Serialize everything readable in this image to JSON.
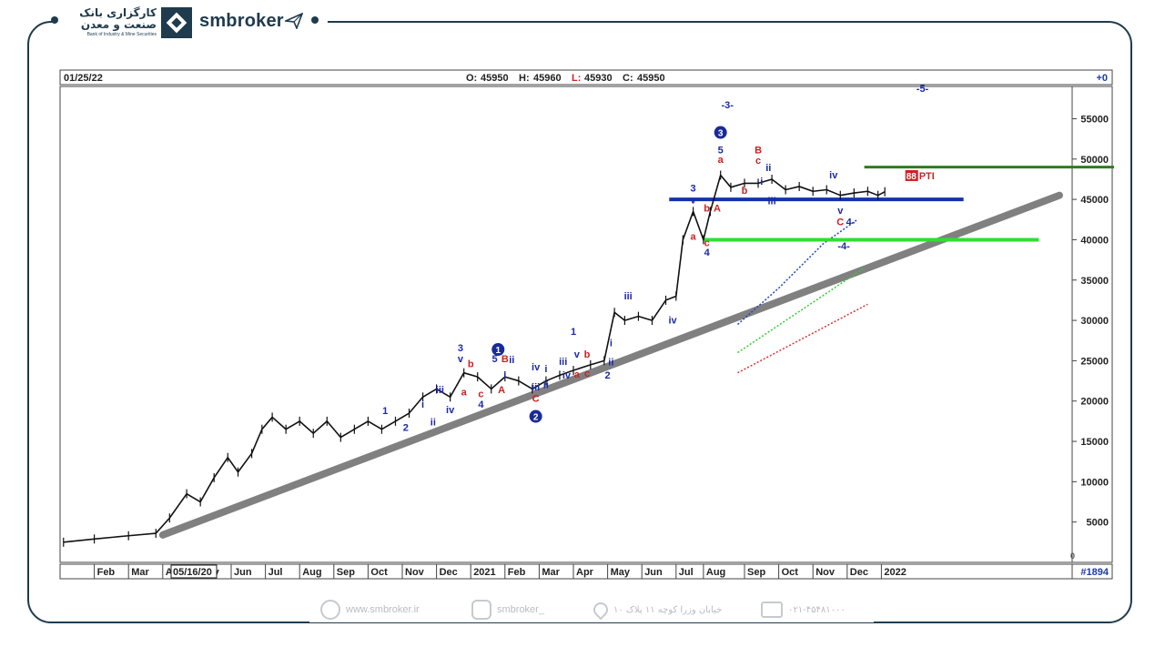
{
  "brand": {
    "company_fa_line1": "کارگزاری بانک",
    "company_fa_line2": "صنعت و معدن",
    "company_en": "Bank of Industry & Mine Securities",
    "site_name": "smbroker"
  },
  "footer": {
    "website": "www.smbroker.ir",
    "instagram": "smbroker_",
    "address": "خیابان وزرا کوچه ۱۱ پلاک ۱۰",
    "phone": "۰۲۱-۴۵۴۸۱۰۰۰"
  },
  "header": {
    "date": "01/25/22",
    "o_label": "O:",
    "o": "45950",
    "h_label": "H:",
    "h": "45960",
    "l_label": "L:",
    "l": "45930",
    "c_label": "C:",
    "c": "45950",
    "right_change": "+0"
  },
  "bottom": {
    "bar_count": "#1894",
    "cursor_date": "05/16/20"
  },
  "chart_data": {
    "type": "line",
    "ylim": [
      0,
      60000
    ],
    "yticks": [
      5000,
      10000,
      15000,
      20000,
      25000,
      30000,
      35000,
      40000,
      45000,
      50000,
      55000
    ],
    "xticks": [
      {
        "label": "Feb",
        "m": 1.0
      },
      {
        "label": "Mar",
        "m": 2.0
      },
      {
        "label": "Apr",
        "m": 3.0
      },
      {
        "label": "May",
        "m": 4.0
      },
      {
        "label": "Jun",
        "m": 5.0
      },
      {
        "label": "Jul",
        "m": 6.0
      },
      {
        "label": "Aug",
        "m": 7.0
      },
      {
        "label": "Sep",
        "m": 8.0
      },
      {
        "label": "Oct",
        "m": 9.0
      },
      {
        "label": "Nov",
        "m": 10.0
      },
      {
        "label": "Dec",
        "m": 11.0
      },
      {
        "label": "2021",
        "m": 12.0
      },
      {
        "label": "Feb",
        "m": 13.0
      },
      {
        "label": "Mar",
        "m": 14.0
      },
      {
        "label": "Apr",
        "m": 15.0
      },
      {
        "label": "May",
        "m": 16.0
      },
      {
        "label": "Jun",
        "m": 17.0
      },
      {
        "label": "Jul",
        "m": 18.0
      },
      {
        "label": "Aug",
        "m": 18.8
      },
      {
        "label": "Sep",
        "m": 20.0
      },
      {
        "label": "Oct",
        "m": 21.0
      },
      {
        "label": "Nov",
        "m": 22.0
      },
      {
        "label": "Dec",
        "m": 23.0
      },
      {
        "label": "2022",
        "m": 24.0
      }
    ],
    "price": [
      [
        0.1,
        2500
      ],
      [
        1,
        2900
      ],
      [
        2,
        3300
      ],
      [
        2.8,
        3600
      ],
      [
        3.2,
        5500
      ],
      [
        3.7,
        8500
      ],
      [
        4.1,
        7500
      ],
      [
        4.5,
        10500
      ],
      [
        4.9,
        13000
      ],
      [
        5.2,
        11200
      ],
      [
        5.6,
        13500
      ],
      [
        5.9,
        16500
      ],
      [
        6.2,
        18000
      ],
      [
        6.6,
        16500
      ],
      [
        7.0,
        17500
      ],
      [
        7.4,
        16000
      ],
      [
        7.8,
        17500
      ],
      [
        8.2,
        15500
      ],
      [
        8.6,
        16500
      ],
      [
        9.0,
        17500
      ],
      [
        9.4,
        16500
      ],
      [
        9.8,
        17500
      ],
      [
        10.2,
        18500
      ],
      [
        10.6,
        20500
      ],
      [
        11.0,
        21500
      ],
      [
        11.4,
        20500
      ],
      [
        11.8,
        23500
      ],
      [
        12.2,
        23000
      ],
      [
        12.6,
        21500
      ],
      [
        13.0,
        23000
      ],
      [
        13.4,
        22500
      ],
      [
        13.8,
        21500
      ],
      [
        14.2,
        22500
      ],
      [
        14.6,
        23200
      ],
      [
        15.0,
        23800
      ],
      [
        15.5,
        24500
      ],
      [
        15.9,
        25000
      ],
      [
        16.2,
        31000
      ],
      [
        16.5,
        30000
      ],
      [
        16.9,
        30500
      ],
      [
        17.3,
        30000
      ],
      [
        17.7,
        32500
      ],
      [
        18.0,
        33000
      ],
      [
        18.2,
        40000
      ],
      [
        18.5,
        43500
      ],
      [
        18.8,
        40000
      ],
      [
        19.0,
        43500
      ],
      [
        19.3,
        48000
      ],
      [
        19.6,
        46500
      ],
      [
        20.0,
        47000
      ],
      [
        20.4,
        47000
      ],
      [
        20.8,
        47500
      ],
      [
        21.2,
        46200
      ],
      [
        21.6,
        46600
      ],
      [
        22.0,
        46000
      ],
      [
        22.4,
        46200
      ],
      [
        22.8,
        45500
      ],
      [
        23.2,
        45800
      ],
      [
        23.6,
        46000
      ],
      [
        23.9,
        45500
      ],
      [
        24.1,
        45950
      ]
    ],
    "trendline": [
      [
        3.0,
        3400
      ],
      [
        29.2,
        45500
      ]
    ],
    "horizontal_levels": [
      {
        "name": "support-green",
        "y": 40000,
        "x1": 18.8,
        "x2": 28.6,
        "color": "#33dd33"
      },
      {
        "name": "support-blue",
        "y": 45000,
        "x1": 17.8,
        "x2": 26.4,
        "color": "#1133aa"
      },
      {
        "name": "resistance-darkgreen",
        "y": 49000,
        "x1": 23.5,
        "x2": 31.5,
        "color": "#2e7d1e"
      }
    ],
    "channel_lines": [
      {
        "name": "blue-dotted",
        "color": "#2244cc",
        "points": [
          [
            19.8,
            29500
          ],
          [
            21.0,
            34000
          ],
          [
            22.3,
            39500
          ],
          [
            23.3,
            42500
          ]
        ]
      },
      {
        "name": "green-dotted",
        "color": "#33cc33",
        "points": [
          [
            19.8,
            26000
          ],
          [
            23.5,
            36500
          ]
        ]
      },
      {
        "name": "red-dotted",
        "color": "#dd3333",
        "points": [
          [
            19.8,
            23500
          ],
          [
            23.6,
            32000
          ]
        ]
      }
    ],
    "wave_labels": [
      {
        "t": "1",
        "m": 9.5,
        "y": 18400,
        "c": "#1a2aaa"
      },
      {
        "t": "2",
        "m": 10.1,
        "y": 16300,
        "c": "#1a2aaa"
      },
      {
        "t": "i",
        "m": 10.6,
        "y": 19200,
        "c": "#1a2aaa"
      },
      {
        "t": "ii",
        "m": 10.9,
        "y": 17000,
        "c": "#1a2aaa"
      },
      {
        "t": "iii",
        "m": 11.1,
        "y": 21000,
        "c": "#1a2aaa"
      },
      {
        "t": "iv",
        "m": 11.4,
        "y": 18500,
        "c": "#1a2aaa"
      },
      {
        "t": "3",
        "m": 11.7,
        "y": 26200,
        "c": "#1a2aaa"
      },
      {
        "t": "v",
        "m": 11.7,
        "y": 24800,
        "c": "#1a2aaa"
      },
      {
        "t": "b",
        "m": 12.0,
        "y": 24200,
        "c": "#cc2222"
      },
      {
        "t": "a",
        "m": 11.8,
        "y": 20700,
        "c": "#cc2222"
      },
      {
        "t": "c",
        "m": 12.3,
        "y": 20500,
        "c": "#cc2222"
      },
      {
        "t": "4",
        "m": 12.3,
        "y": 19200,
        "c": "#1a2aaa"
      },
      {
        "t": "5",
        "m": 12.7,
        "y": 24800,
        "c": "#1a2aaa"
      },
      {
        "t": "B",
        "m": 13.0,
        "y": 24800,
        "c": "#cc2222"
      },
      {
        "t": "ii",
        "m": 13.2,
        "y": 24700,
        "c": "#1a2aaa"
      },
      {
        "t": "i",
        "m": 13.0,
        "y": 22800,
        "c": "#1a2aaa"
      },
      {
        "t": "A",
        "m": 12.9,
        "y": 21000,
        "c": "#cc2222"
      },
      {
        "t": "iv",
        "m": 13.9,
        "y": 23800,
        "c": "#1a2aaa"
      },
      {
        "t": "i",
        "m": 14.2,
        "y": 23600,
        "c": "#1a2aaa"
      },
      {
        "t": "iii",
        "m": 13.9,
        "y": 21300,
        "c": "#1a2aaa"
      },
      {
        "t": "ii",
        "m": 14.2,
        "y": 21600,
        "c": "#1a2aaa"
      },
      {
        "t": "C",
        "m": 13.9,
        "y": 19900,
        "c": "#cc2222"
      },
      {
        "t": "iii",
        "m": 14.7,
        "y": 24500,
        "c": "#1a2aaa"
      },
      {
        "t": "iv",
        "m": 14.8,
        "y": 22800,
        "c": "#1a2aaa"
      },
      {
        "t": "v",
        "m": 15.1,
        "y": 25400,
        "c": "#1a2aaa"
      },
      {
        "t": "b",
        "m": 15.4,
        "y": 25400,
        "c": "#cc2222"
      },
      {
        "t": "a",
        "m": 15.1,
        "y": 22900,
        "c": "#cc2222"
      },
      {
        "t": "c",
        "m": 15.4,
        "y": 23000,
        "c": "#cc2222"
      },
      {
        "t": "1",
        "m": 15.0,
        "y": 28200,
        "c": "#1a2aaa"
      },
      {
        "t": "2",
        "m": 16.0,
        "y": 22800,
        "c": "#1a2aaa"
      },
      {
        "t": "i",
        "m": 16.1,
        "y": 26800,
        "c": "#1a2aaa"
      },
      {
        "t": "ii",
        "m": 16.1,
        "y": 24400,
        "c": "#1a2aaa"
      },
      {
        "t": "iii",
        "m": 16.6,
        "y": 32600,
        "c": "#1a2aaa"
      },
      {
        "t": "iv",
        "m": 17.9,
        "y": 29600,
        "c": "#1a2aaa"
      },
      {
        "t": "3",
        "m": 18.5,
        "y": 46000,
        "c": "#1a2aaa"
      },
      {
        "t": "v",
        "m": 18.5,
        "y": 44500,
        "c": "#1a2aaa"
      },
      {
        "t": "b",
        "m": 18.9,
        "y": 43500,
        "c": "#cc2222"
      },
      {
        "t": "a",
        "m": 18.5,
        "y": 40000,
        "c": "#cc2222"
      },
      {
        "t": "c",
        "m": 18.9,
        "y": 39200,
        "c": "#cc2222"
      },
      {
        "t": "4",
        "m": 18.9,
        "y": 38000,
        "c": "#1a2aaa"
      },
      {
        "t": "A",
        "m": 19.2,
        "y": 43500,
        "c": "#cc2222"
      },
      {
        "t": "5",
        "m": 19.3,
        "y": 50700,
        "c": "#1a2aaa"
      },
      {
        "t": "a",
        "m": 19.3,
        "y": 49500,
        "c": "#cc2222"
      },
      {
        "t": "B",
        "m": 20.4,
        "y": 50700,
        "c": "#cc2222"
      },
      {
        "t": "c",
        "m": 20.4,
        "y": 49400,
        "c": "#cc2222"
      },
      {
        "t": "ii",
        "m": 20.7,
        "y": 48500,
        "c": "#1a2aaa"
      },
      {
        "t": "i",
        "m": 20.5,
        "y": 46800,
        "c": "#1a2aaa"
      },
      {
        "t": "b",
        "m": 20.0,
        "y": 45700,
        "c": "#cc2222"
      },
      {
        "t": "iii",
        "m": 20.8,
        "y": 44400,
        "c": "#1a2aaa"
      },
      {
        "t": "iv",
        "m": 22.6,
        "y": 47600,
        "c": "#1a2aaa"
      },
      {
        "t": "v",
        "m": 22.8,
        "y": 43200,
        "c": "#1a2aaa"
      },
      {
        "t": "C",
        "m": 22.8,
        "y": 41800,
        "c": "#cc2222"
      },
      {
        "t": "4-",
        "m": 23.1,
        "y": 41800,
        "c": "#1a2aaa"
      },
      {
        "t": "-4-",
        "m": 22.9,
        "y": 38800,
        "c": "#1a2aaa"
      },
      {
        "t": "-3-",
        "m": 19.5,
        "y": 56300,
        "c": "#1a2aaa"
      },
      {
        "t": "-5-",
        "m": 25.2,
        "y": 58300,
        "c": "#1a2aaa"
      }
    ],
    "circle_labels": [
      {
        "t": "1",
        "m": 12.8,
        "y": 26400
      },
      {
        "t": "2",
        "m": 13.9,
        "y": 18100
      },
      {
        "t": "3",
        "m": 19.3,
        "y": 53300
      }
    ],
    "pti_badge": {
      "value": "88",
      "label": "PTI",
      "m": 24.7,
      "y": 47500
    }
  }
}
